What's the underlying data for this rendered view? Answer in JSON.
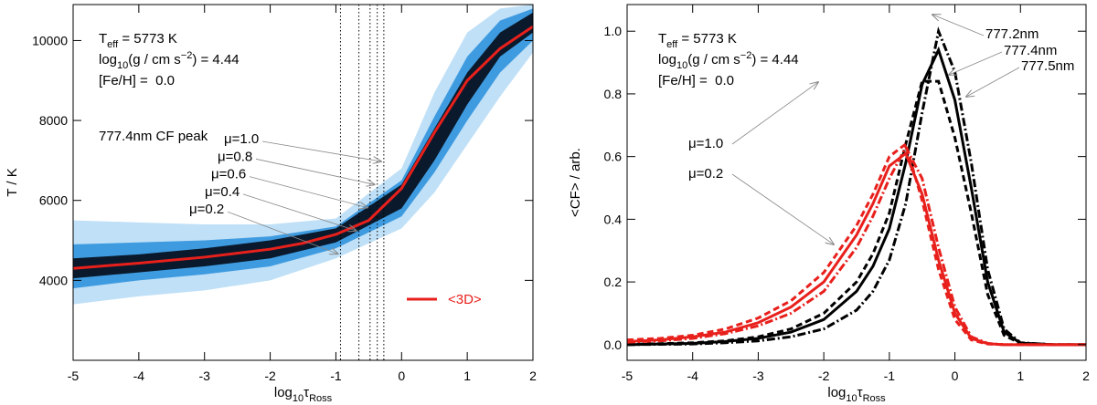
{
  "chart_data": [
    {
      "type": "line",
      "params": [
        [
          {
            "text": "T"
          },
          {
            "text": "eff",
            "shift": "sub"
          },
          {
            "text": " = 5773 K"
          }
        ],
        [
          {
            "text": "log"
          },
          {
            "text": "10",
            "shift": "sub"
          },
          {
            "text": "(g / cm s"
          },
          {
            "text": "−2",
            "shift": "sup"
          },
          {
            "text": ") = 4.44"
          }
        ],
        [
          {
            "text": "[Fe/H] =  0.0"
          }
        ]
      ],
      "xlabel": [
        {
          "text": "log"
        },
        {
          "text": "10",
          "shift": "sub"
        },
        {
          "text": "τ"
        },
        {
          "text": "Ross",
          "shift": "sub"
        }
      ],
      "ylabel": "T / K",
      "xlim": [
        -5,
        2
      ],
      "xticks": [
        -5,
        -4,
        -3,
        -2,
        -1,
        0,
        1,
        2
      ],
      "ylim": [
        2000,
        10900
      ],
      "yticks": [
        4000,
        6000,
        8000,
        10000
      ],
      "bands_x": [
        -5,
        -4,
        -3,
        -2,
        -1,
        0,
        0.5,
        1,
        1.5,
        2
      ],
      "bands": [
        {
          "color": "#bfe0f7",
          "lower": [
            3400,
            3600,
            3750,
            4000,
            4550,
            5300,
            6200,
            7400,
            8600,
            9700
          ],
          "upper": [
            5500,
            5450,
            5400,
            5400,
            5550,
            6800,
            8700,
            10200,
            10800,
            10900
          ]
        },
        {
          "color": "#3f9be0",
          "lower": [
            3800,
            4000,
            4150,
            4350,
            4800,
            5600,
            6700,
            8000,
            9200,
            10000
          ],
          "upper": [
            4900,
            4950,
            5000,
            5100,
            5350,
            6500,
            8100,
            9600,
            10500,
            10800
          ]
        },
        {
          "color": "#0a1a2c",
          "lower": [
            4050,
            4200,
            4350,
            4550,
            4950,
            5800,
            7000,
            8400,
            9600,
            10200
          ],
          "upper": [
            4550,
            4650,
            4800,
            5000,
            5300,
            6400,
            7800,
            9200,
            10200,
            10700
          ]
        }
      ],
      "cf_title": "777.4nm CF peak",
      "cf_peaks": [
        {
          "label": "μ=1.0",
          "value": -0.27
        },
        {
          "label": "μ=0.8",
          "value": -0.37
        },
        {
          "label": "μ=0.6",
          "value": -0.48
        },
        {
          "label": "μ=0.4",
          "value": -0.65
        },
        {
          "label": "μ=0.2",
          "value": -0.93
        }
      ],
      "legend": "lower right",
      "x": [
        -5,
        -4,
        -3,
        -2,
        -1.5,
        -1,
        -0.5,
        0,
        0.5,
        1,
        1.5,
        2
      ],
      "series": [
        {
          "name": "<3D>",
          "color": "#e8201c",
          "style": "solid",
          "values": [
            4300,
            4430,
            4580,
            4780,
            4930,
            5150,
            5500,
            6300,
            7700,
            9000,
            9800,
            10350
          ]
        }
      ]
    },
    {
      "type": "line",
      "params": [
        [
          {
            "text": "T"
          },
          {
            "text": "eff",
            "shift": "sub"
          },
          {
            "text": " = 5773 K"
          }
        ],
        [
          {
            "text": "log"
          },
          {
            "text": "10",
            "shift": "sub"
          },
          {
            "text": "(g / cm s"
          },
          {
            "text": "−2",
            "shift": "sup"
          },
          {
            "text": ") = 4.44"
          }
        ],
        [
          {
            "text": "[Fe/H] =  0.0"
          }
        ]
      ],
      "xlabel": [
        {
          "text": "log"
        },
        {
          "text": "10",
          "shift": "sub"
        },
        {
          "text": "τ"
        },
        {
          "text": "Ross",
          "shift": "sub"
        }
      ],
      "ylabel": "<CF> / arb.",
      "xlim": [
        -5,
        2
      ],
      "xticks": [
        -5,
        -4,
        -3,
        -2,
        -1,
        0,
        1,
        2
      ],
      "ylim": [
        -0.05,
        1.085
      ],
      "yticks": [
        {
          "value": 0,
          "label": "0.0"
        },
        0.2,
        0.4,
        0.6,
        0.8,
        {
          "value": 1,
          "label": "1.0"
        }
      ],
      "groups": [
        "μ=1.0",
        "μ=0.2"
      ],
      "x": [
        -5,
        -4.5,
        -4,
        -3.5,
        -3,
        -2.5,
        -2,
        -1.5,
        -1.25,
        -1,
        -0.75,
        -0.5,
        -0.25,
        0,
        0.25,
        0.5,
        0.75,
        1,
        1.5,
        2
      ],
      "series": [
        {
          "name": "777.2nm",
          "color": "#000000",
          "style": "dashdot",
          "values": [
            0,
            0.001,
            0.002,
            0.006,
            0.012,
            0.025,
            0.05,
            0.11,
            0.17,
            0.27,
            0.45,
            0.74,
            1.0,
            0.87,
            0.58,
            0.24,
            0.05,
            0.006,
            0,
            0
          ]
        },
        {
          "name": "777.4nm",
          "color": "#000000",
          "style": "solid",
          "values": [
            0,
            0.002,
            0.004,
            0.01,
            0.02,
            0.04,
            0.08,
            0.17,
            0.25,
            0.37,
            0.58,
            0.83,
            0.94,
            0.78,
            0.5,
            0.2,
            0.04,
            0.005,
            0,
            0
          ]
        },
        {
          "name": "777.5nm",
          "color": "#000000",
          "style": "dashed",
          "values": [
            0.001,
            0.003,
            0.006,
            0.012,
            0.025,
            0.05,
            0.1,
            0.2,
            0.29,
            0.42,
            0.64,
            0.84,
            0.84,
            0.66,
            0.42,
            0.16,
            0.03,
            0.004,
            0,
            0
          ]
        },
        {
          "color": "#e8201c",
          "style": "dashdot",
          "values": [
            0.008,
            0.012,
            0.02,
            0.035,
            0.06,
            0.1,
            0.17,
            0.31,
            0.41,
            0.53,
            0.63,
            0.53,
            0.31,
            0.12,
            0.025,
            0.004,
            0,
            0,
            0,
            0
          ]
        },
        {
          "color": "#e8201c",
          "style": "solid",
          "values": [
            0.01,
            0.015,
            0.025,
            0.04,
            0.07,
            0.12,
            0.2,
            0.35,
            0.45,
            0.57,
            0.61,
            0.48,
            0.27,
            0.1,
            0.02,
            0.003,
            0,
            0,
            0,
            0
          ]
        },
        {
          "color": "#e8201c",
          "style": "dashed",
          "values": [
            0.015,
            0.02,
            0.03,
            0.05,
            0.085,
            0.14,
            0.23,
            0.38,
            0.48,
            0.6,
            0.64,
            0.46,
            0.24,
            0.08,
            0.015,
            0.002,
            0,
            0,
            0,
            0
          ]
        }
      ]
    }
  ]
}
